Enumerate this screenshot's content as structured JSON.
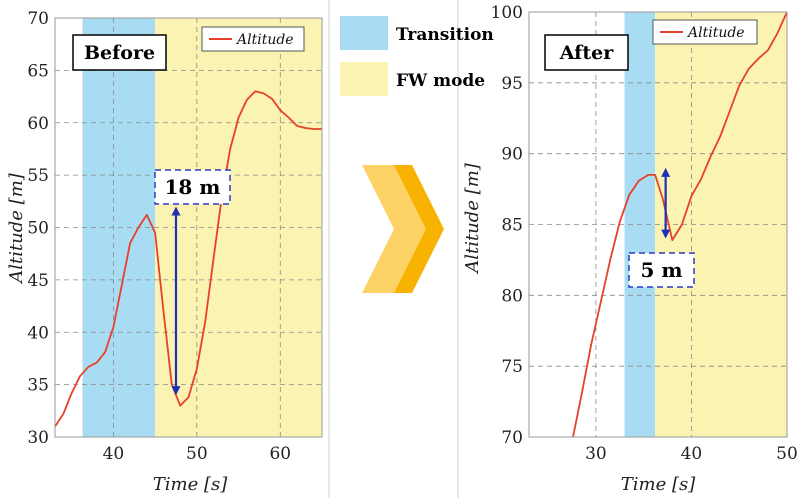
{
  "colors": {
    "transition": "#a8dcf2",
    "fw_mode": "#fbf3b2",
    "altitude_line": "#e8402a",
    "arrow": "#1f2fb8",
    "annot_border": "#2a3bc4",
    "chevron_light": "#fcd165",
    "chevron_dark": "#f8b200"
  },
  "legend_key": [
    {
      "label": "Transition",
      "color": "#a8dcf2"
    },
    {
      "label": "FW mode",
      "color": "#fbf3b2"
    }
  ],
  "transition_icon": "double-chevron-right-icon",
  "chart_data": [
    {
      "type": "line",
      "title": "Before",
      "xlabel": "Time [s]",
      "ylabel": "Altitude [m]",
      "xlim": [
        33,
        65
      ],
      "ylim": [
        30,
        70
      ],
      "xticks": [
        40,
        50,
        60
      ],
      "yticks": [
        30,
        35,
        40,
        45,
        50,
        55,
        60,
        65,
        70
      ],
      "grid": true,
      "legend_position": "top-right",
      "regions": [
        {
          "label": "Transition",
          "x_start": 36.3,
          "x_end": 45
        },
        {
          "label": "FW mode",
          "x_start": 45,
          "x_end": 65
        }
      ],
      "series": [
        {
          "name": "Altitude",
          "x": [
            33,
            34,
            35,
            36,
            37,
            38,
            39,
            40,
            41,
            42,
            43,
            44,
            45,
            46,
            47,
            48,
            49,
            50,
            51,
            52,
            53,
            54,
            55,
            56,
            57,
            58,
            59,
            60,
            61,
            62,
            63,
            64,
            65
          ],
          "y": [
            31,
            32.2,
            34.2,
            35.8,
            36.7,
            37.1,
            38.1,
            40.5,
            44.5,
            48.5,
            50,
            51.2,
            49.5,
            42,
            35,
            33,
            33.8,
            36.5,
            41,
            47,
            53,
            57.5,
            60.5,
            62.2,
            63,
            62.8,
            62.3,
            61.2,
            60.5,
            59.7,
            59.5,
            59.4,
            59.4
          ]
        }
      ],
      "annotation": {
        "text": "18 m",
        "from_y": 34,
        "to_y": 52,
        "x": 47.5
      }
    },
    {
      "type": "line",
      "title": "After",
      "xlabel": "Time [s]",
      "ylabel": "Altitude [m]",
      "xlim": [
        23,
        50
      ],
      "ylim": [
        70,
        100
      ],
      "xticks": [
        30,
        40,
        50
      ],
      "yticks": [
        70,
        75,
        80,
        85,
        90,
        95,
        100
      ],
      "grid": true,
      "legend_position": "top-right",
      "regions": [
        {
          "label": "Transition",
          "x_start": 33,
          "x_end": 36.2
        },
        {
          "label": "FW mode",
          "x_start": 36.2,
          "x_end": 50
        }
      ],
      "series": [
        {
          "name": "Altitude",
          "x": [
            27.6,
            28.5,
            29.5,
            30.5,
            31.5,
            32.5,
            33.5,
            34.5,
            35.5,
            36.2,
            37,
            38,
            39,
            40,
            41,
            42,
            43,
            44,
            45,
            46,
            47,
            48,
            49,
            50
          ],
          "y": [
            70,
            73,
            76.5,
            79.5,
            82.5,
            85.2,
            87.1,
            88.1,
            88.5,
            88.5,
            86.8,
            83.9,
            85,
            87,
            88.2,
            89.8,
            91.2,
            93,
            94.8,
            96,
            96.7,
            97.3,
            98.5,
            100
          ]
        }
      ],
      "annotation": {
        "text": "5 m",
        "from_y": 84,
        "to_y": 89,
        "x": 37.3
      }
    }
  ]
}
